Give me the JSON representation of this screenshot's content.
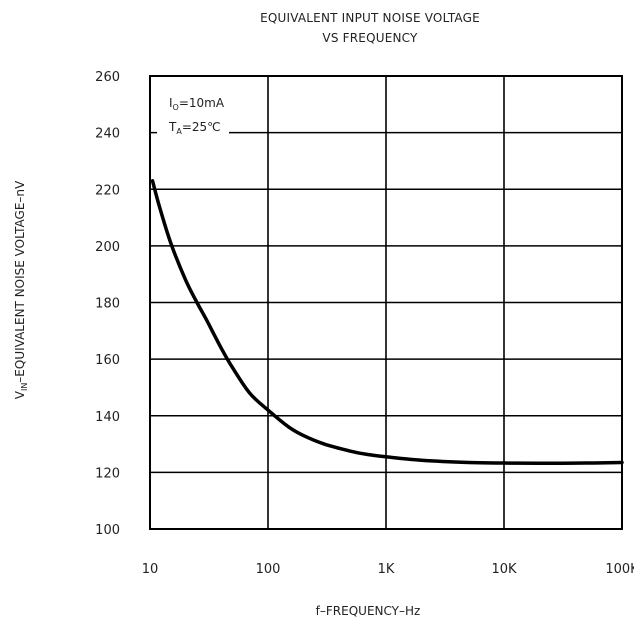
{
  "chart_data": {
    "type": "line",
    "title_lines": [
      "EQUIVALENT INPUT NOISE VOLTAGE",
      "VS FREQUENCY"
    ],
    "xlabel": "f–FREQUENCY–Hz",
    "ylabel": {
      "main": "V",
      "sub": "IN",
      "rest": "–EQUIVALENT NOISE VOLTAGE–nV"
    },
    "x_scale": "log",
    "xlim": [
      10,
      100000
    ],
    "ylim": [
      100,
      260
    ],
    "x_ticks": [
      {
        "value": 10,
        "label": "10"
      },
      {
        "value": 100,
        "label": "100"
      },
      {
        "value": 1000,
        "label": "1K"
      },
      {
        "value": 10000,
        "label": "10K"
      },
      {
        "value": 100000,
        "label": "100K"
      }
    ],
    "y_ticks": [
      {
        "value": 100,
        "label": "100"
      },
      {
        "value": 120,
        "label": "120"
      },
      {
        "value": 140,
        "label": "140"
      },
      {
        "value": 160,
        "label": "160"
      },
      {
        "value": 180,
        "label": "180"
      },
      {
        "value": 200,
        "label": "200"
      },
      {
        "value": 220,
        "label": "220"
      },
      {
        "value": 240,
        "label": "240"
      },
      {
        "value": 260,
        "label": "260"
      }
    ],
    "grid": true,
    "annotations": [
      {
        "main": "I",
        "sub": "O",
        "rest": "=10mA"
      },
      {
        "main": "T",
        "sub": "A",
        "rest": "=25℃"
      }
    ],
    "series": [
      {
        "color": "#000000",
        "x": [
          10.5,
          12,
          15,
          20,
          25,
          30,
          40,
          50,
          70,
          100,
          150,
          200,
          300,
          500,
          700,
          1000,
          2000,
          5000,
          10000,
          20000,
          50000,
          100000
        ],
        "y": [
          223,
          214,
          201,
          188,
          180,
          174,
          164,
          157,
          148,
          142,
          136,
          133,
          130,
          127.5,
          126.3,
          125.5,
          124.3,
          123.5,
          123.3,
          123.2,
          123.3,
          123.5
        ]
      }
    ]
  }
}
